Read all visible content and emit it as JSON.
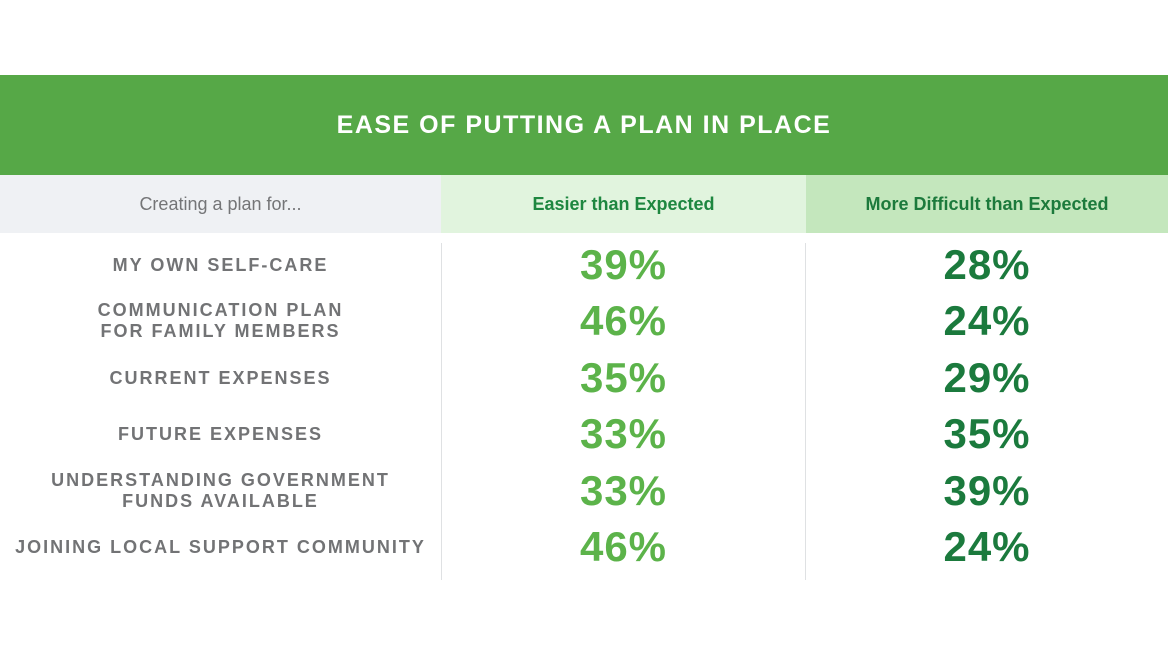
{
  "colors": {
    "banner": "#56a847",
    "easier": "#5cb34a",
    "difficult": "#1b7a3d",
    "easier_header_text": "#1e8740",
    "difficult_header_text": "#1c7a3c"
  },
  "chart_data": {
    "type": "table",
    "title": "EASE OF PUTTING A PLAN IN PLACE",
    "columns": [
      "Creating a plan for...",
      "Easier than Expected",
      "More Difficult than Expected"
    ],
    "rows": [
      {
        "label": "MY OWN SELF-CARE",
        "easier": "39%",
        "difficult": "28%"
      },
      {
        "label": "COMMUNICATION PLAN\nFOR FAMILY MEMBERS",
        "easier": "46%",
        "difficult": "24%"
      },
      {
        "label": "CURRENT EXPENSES",
        "easier": "35%",
        "difficult": "29%"
      },
      {
        "label": "FUTURE EXPENSES",
        "easier": "33%",
        "difficult": "35%"
      },
      {
        "label": "UNDERSTANDING GOVERNMENT\nFUNDS AVAILABLE",
        "easier": "33%",
        "difficult": "39%"
      },
      {
        "label": "JOINING LOCAL SUPPORT COMMUNITY",
        "easier": "46%",
        "difficult": "24%"
      }
    ]
  }
}
